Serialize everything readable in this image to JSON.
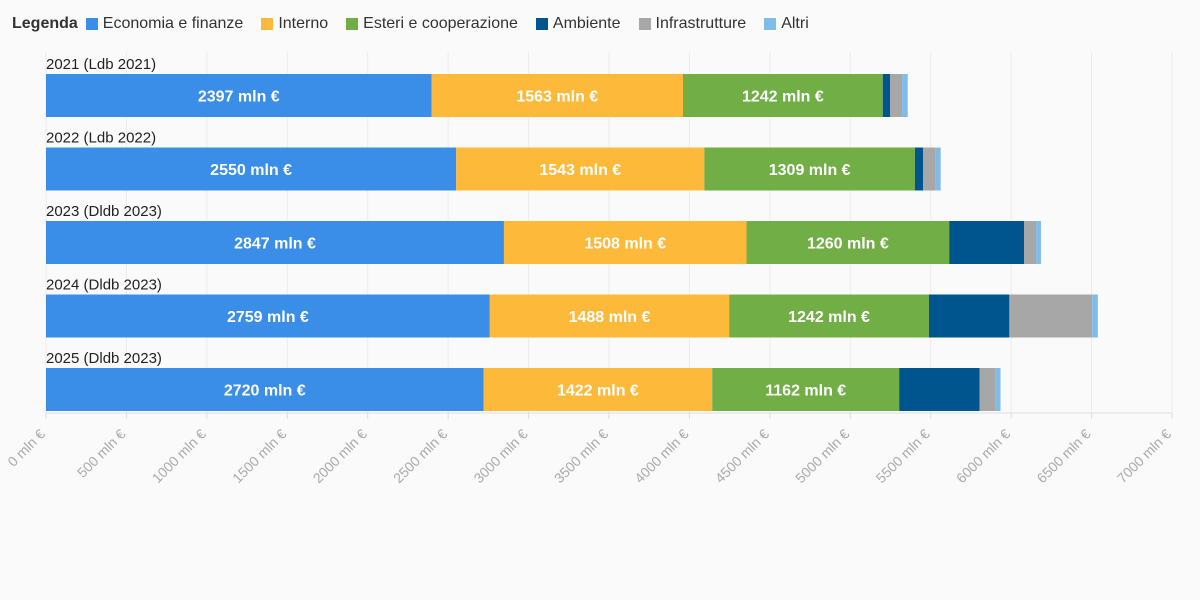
{
  "chart_data": {
    "type": "bar",
    "orientation": "horizontal",
    "stacked": true,
    "legend_title": "Legenda",
    "legend_position": "top-left",
    "categories": [
      "2021 (Ldb 2021)",
      "2022 (Ldb 2022)",
      "2023 (Dldb 2023)",
      "2024 (Dldb 2023)",
      "2025 (Dldb 2023)"
    ],
    "series": [
      {
        "name": "Economia e finanze",
        "color": "#3a8ee8",
        "values": [
          2397,
          2550,
          2847,
          2759,
          2720
        ]
      },
      {
        "name": "Interno",
        "color": "#fdb93a",
        "values": [
          1563,
          1543,
          1508,
          1488,
          1422
        ]
      },
      {
        "name": "Esteri e cooperazione",
        "color": "#71ae45",
        "values": [
          1242,
          1309,
          1260,
          1242,
          1162
        ]
      },
      {
        "name": "Ambiente",
        "color": "#00558f",
        "values": [
          45,
          50,
          465,
          500,
          500
        ]
      },
      {
        "name": "Infrastrutture",
        "color": "#a7a7a7",
        "values": [
          75,
          75,
          75,
          515,
          100
        ]
      },
      {
        "name": "Altri",
        "color": "#7fbde8",
        "values": [
          35,
          35,
          30,
          35,
          30
        ]
      }
    ],
    "value_suffix": " mln €",
    "labeled_series": [
      "Economia e finanze",
      "Interno",
      "Esteri e cooperazione"
    ],
    "xlim": [
      0,
      7000
    ],
    "xticks": [
      0,
      500,
      1000,
      1500,
      2000,
      2500,
      3000,
      3500,
      4000,
      4500,
      5000,
      5500,
      6000,
      6500,
      7000
    ],
    "tick_labels": [
      "0 mln €",
      "500 mln €",
      "1000 mln €",
      "1500 mln €",
      "2000 mln €",
      "2500 mln €",
      "3000 mln €",
      "3500 mln €",
      "4000 mln €",
      "4500 mln €",
      "5000 mln €",
      "5500 mln €",
      "6000 mln €",
      "6500 mln €",
      "7000 mln €"
    ],
    "grid": true,
    "title": "",
    "xlabel": "",
    "ylabel": ""
  }
}
